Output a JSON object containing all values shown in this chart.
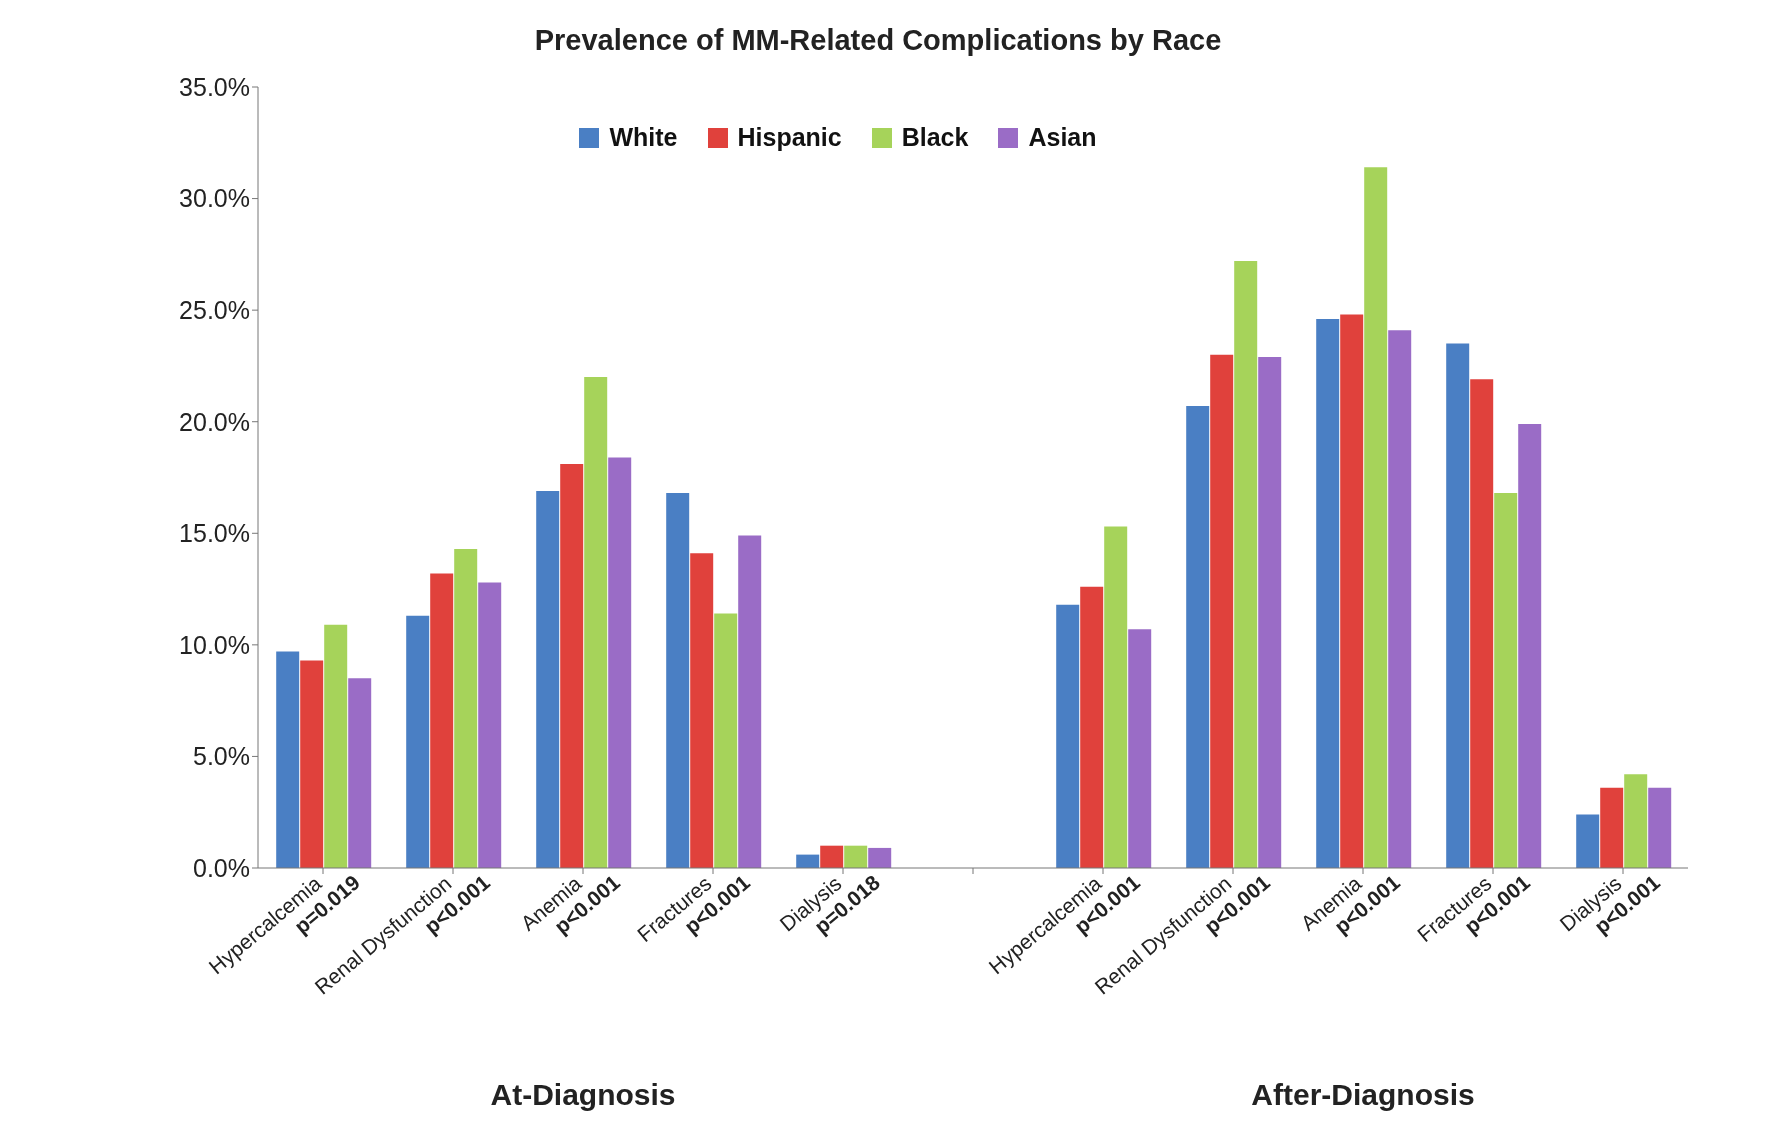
{
  "chart_data": {
    "type": "bar",
    "title": "Prevalence of MM-Related Complications by Race",
    "categories": [
      "Hypercalcemia\np=0.019",
      "Renal Dysfunction\np<0.001",
      "Anemia\np<0.001",
      "Fractures\np<0.001",
      "Dialysis\np=0.018",
      null,
      "Hypercalcemia\np<0.001",
      "Renal Dysfunction\np<0.001",
      "Anemia\np<0.001",
      "Fractures\np<0.001",
      "Dialysis\np<0.001"
    ],
    "series": [
      {
        "name": "White",
        "color": "#4a7fc4",
        "values": [
          9.7,
          11.3,
          16.9,
          16.8,
          0.6,
          null,
          11.8,
          20.7,
          24.6,
          23.5,
          2.4
        ]
      },
      {
        "name": "Hispanic",
        "color": "#e0413c",
        "values": [
          9.3,
          13.2,
          18.1,
          14.1,
          1.0,
          null,
          12.6,
          23.0,
          24.8,
          21.9,
          3.6
        ]
      },
      {
        "name": "Black",
        "color": "#a6d35a",
        "values": [
          10.9,
          14.3,
          22.0,
          11.4,
          1.0,
          null,
          15.3,
          27.2,
          31.4,
          16.8,
          4.2
        ]
      },
      {
        "name": "Asian",
        "color": "#9a6cc6",
        "values": [
          8.5,
          12.8,
          18.4,
          14.9,
          0.9,
          null,
          10.7,
          22.9,
          24.1,
          19.9,
          3.6
        ]
      }
    ],
    "ylim": [
      0,
      35
    ],
    "yticks": [
      {
        "value": 0,
        "label": "0.0%"
      },
      {
        "value": 5,
        "label": "5.0%"
      },
      {
        "value": 10,
        "label": "10.0%"
      },
      {
        "value": 15,
        "label": "15.0%"
      },
      {
        "value": 20,
        "label": "20.0%"
      },
      {
        "value": 25,
        "label": "25.0%"
      },
      {
        "value": 30,
        "label": "30.0%"
      },
      {
        "value": 35,
        "label": "35.0%"
      }
    ],
    "annotations": [
      "At-Diagnosis",
      "After-Diagnosis"
    ],
    "legend": "top",
    "grid": false
  }
}
